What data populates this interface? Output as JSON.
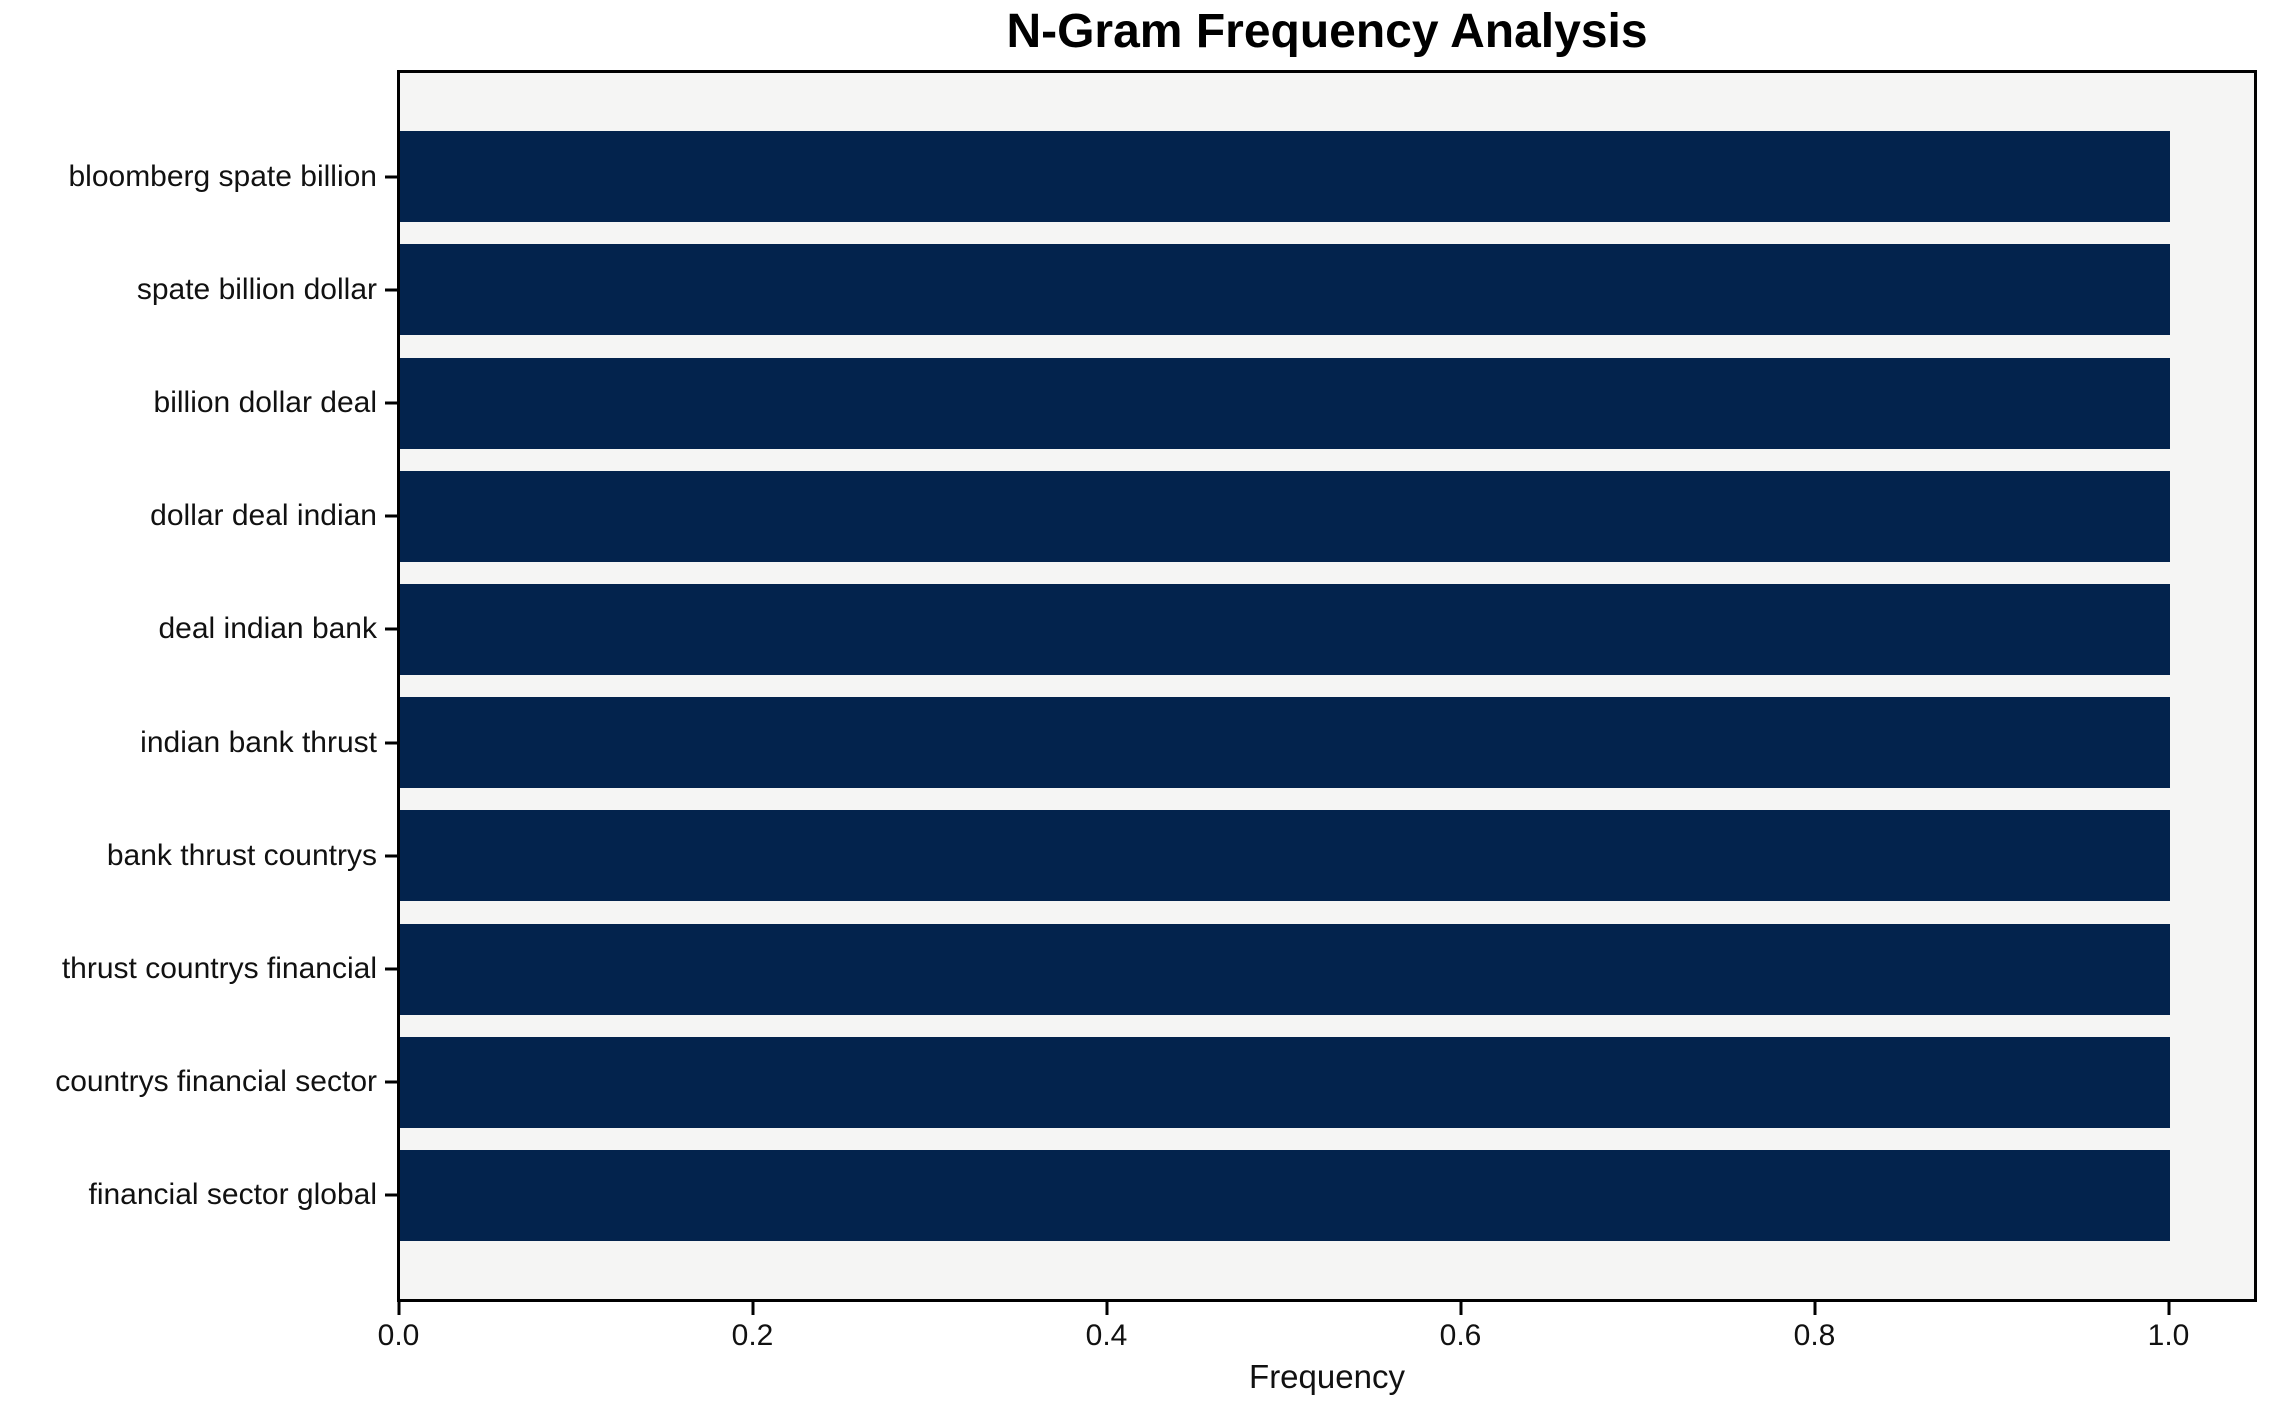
{
  "chart_data": {
    "type": "bar",
    "orientation": "horizontal",
    "title": "N-Gram Frequency Analysis",
    "xlabel": "Frequency",
    "ylabel": "",
    "categories": [
      "bloomberg spate billion",
      "spate billion dollar",
      "billion dollar deal",
      "dollar deal indian",
      "deal indian bank",
      "indian bank thrust",
      "bank thrust countrys",
      "thrust countrys financial",
      "countrys financial sector",
      "financial sector global"
    ],
    "values": [
      1.0,
      1.0,
      1.0,
      1.0,
      1.0,
      1.0,
      1.0,
      1.0,
      1.0,
      1.0
    ],
    "xlim": [
      0.0,
      1.05
    ],
    "xticks": [
      0.0,
      0.2,
      0.4,
      0.6,
      0.8,
      1.0
    ],
    "xtick_labels": [
      "0.0",
      "0.2",
      "0.4",
      "0.6",
      "0.8",
      "1.0"
    ],
    "grid": false,
    "legend_position": "none",
    "colors": {
      "bar": "#03234d",
      "plot_background": "#f5f5f4",
      "figure_background": "#ffffff",
      "spine": "#000000",
      "text": "#111111"
    }
  }
}
